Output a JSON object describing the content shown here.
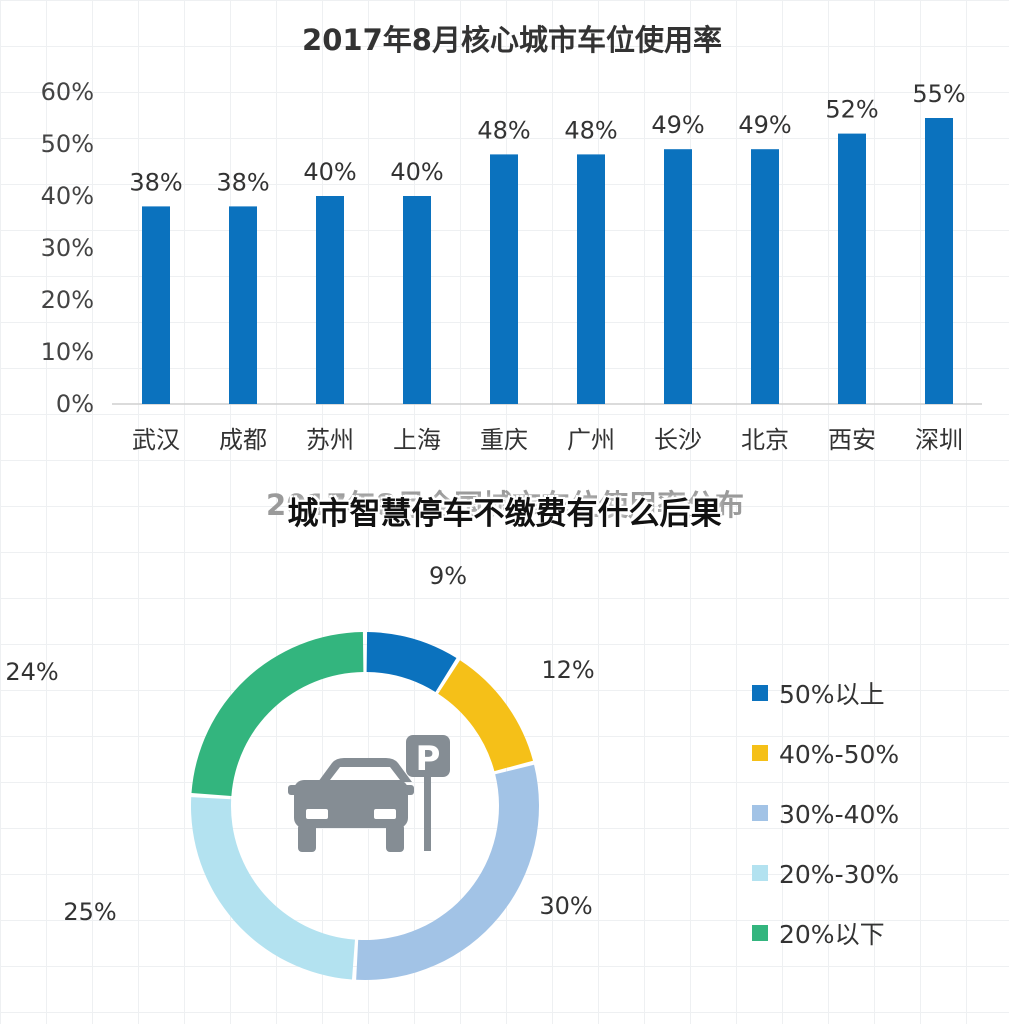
{
  "overlay_title": "城市智慧停车不缴费有什么后果",
  "chart_data": [
    {
      "type": "bar",
      "title": "2017年8月核心城市车位使用率",
      "categories": [
        "武汉",
        "成都",
        "苏州",
        "上海",
        "重庆",
        "广州",
        "长沙",
        "北京",
        "西安",
        "深圳"
      ],
      "values": [
        38,
        38,
        40,
        40,
        48,
        48,
        49,
        49,
        52,
        55
      ],
      "data_labels": [
        "38%",
        "38%",
        "40%",
        "40%",
        "48%",
        "48%",
        "49%",
        "49%",
        "52%",
        "55%"
      ],
      "yticks": [
        "0%",
        "10%",
        "20%",
        "30%",
        "40%",
        "50%",
        "60%"
      ],
      "ylim": [
        0,
        60
      ],
      "grid": false,
      "color": "#0b72be"
    },
    {
      "type": "pie",
      "title": "2017年8月全国城市车位使用率分布",
      "donut": true,
      "center_icon": "car-parking-icon",
      "series": [
        {
          "name": "50%以上",
          "value": 9,
          "label": "9%",
          "color": "#0b72be"
        },
        {
          "name": "40%-50%",
          "value": 12,
          "label": "12%",
          "color": "#f5c018"
        },
        {
          "name": "30%-40%",
          "value": 30,
          "label": "30%",
          "color": "#a2c3e6"
        },
        {
          "name": "20%-30%",
          "value": 25,
          "label": "25%",
          "color": "#b3e2f0"
        },
        {
          "name": "20%以下",
          "value": 24,
          "label": "24%",
          "color": "#33b57e"
        }
      ],
      "legend_position": "right"
    }
  ]
}
